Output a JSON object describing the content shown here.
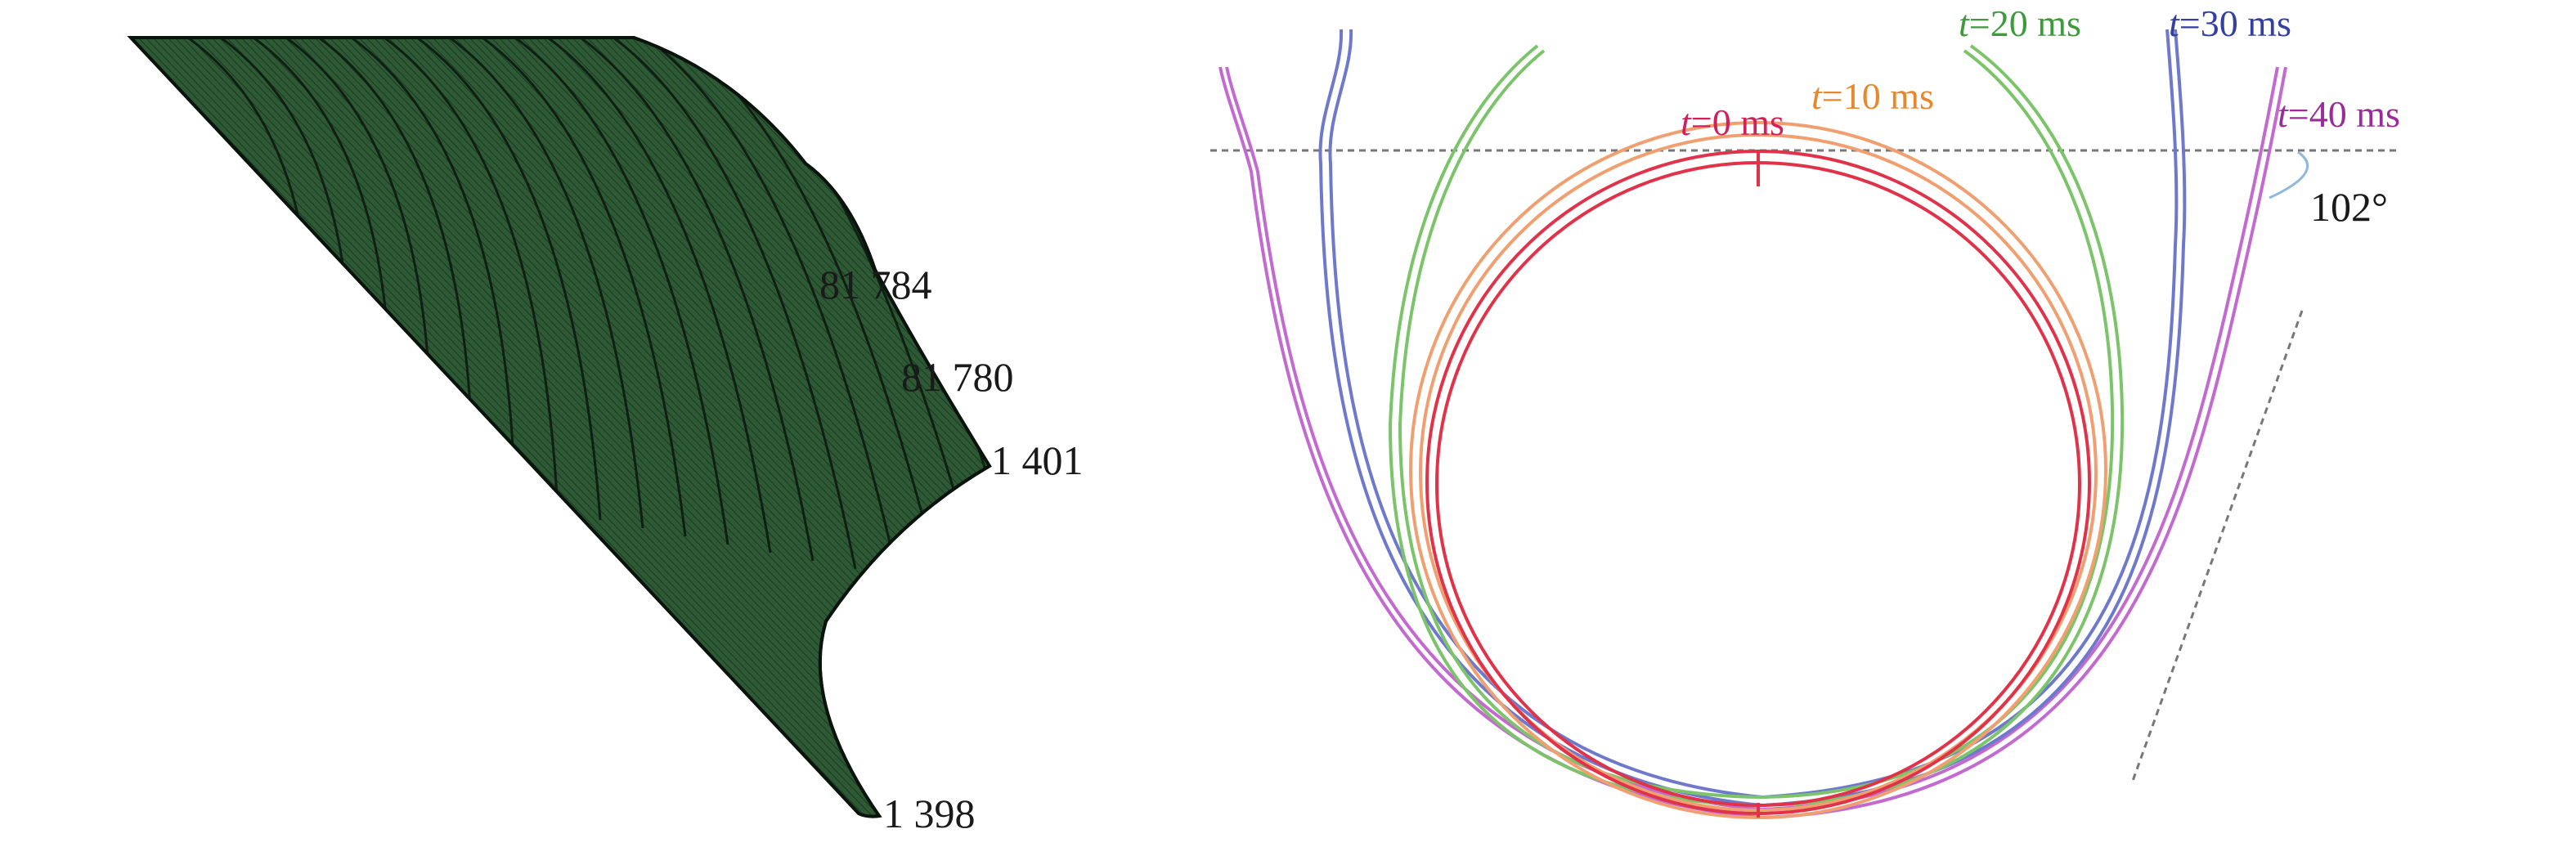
{
  "left_panel": {
    "node_labels": [
      {
        "id": "n81784",
        "text": "81 784"
      },
      {
        "id": "n81780",
        "text": "81 780"
      },
      {
        "id": "n1401",
        "text": "1 401"
      },
      {
        "id": "n1398",
        "text": "1 398"
      }
    ],
    "mesh_color": "#2d5a35",
    "mesh_line_color": "#0f1f12"
  },
  "right_panel": {
    "time_labels": [
      {
        "id": "t0",
        "var": "t",
        "rest": "=0 ms",
        "color": "#d0215b"
      },
      {
        "id": "t10",
        "var": "t",
        "rest": "=10 ms",
        "color": "#e6882d"
      },
      {
        "id": "t20",
        "var": "t",
        "rest": "=20 ms",
        "color": "#3d9a3d"
      },
      {
        "id": "t30",
        "var": "t",
        "rest": "=30 ms",
        "color": "#3340a0"
      },
      {
        "id": "t40",
        "var": "t",
        "rest": "=40 ms",
        "color": "#9a2c9a"
      }
    ],
    "angle_label": "102°",
    "curve_colors": {
      "t0": "#e0334a",
      "t10": "#f0a070",
      "t20": "#7cc46a",
      "t30": "#6f79cc",
      "t40": "#c36ad0"
    }
  }
}
